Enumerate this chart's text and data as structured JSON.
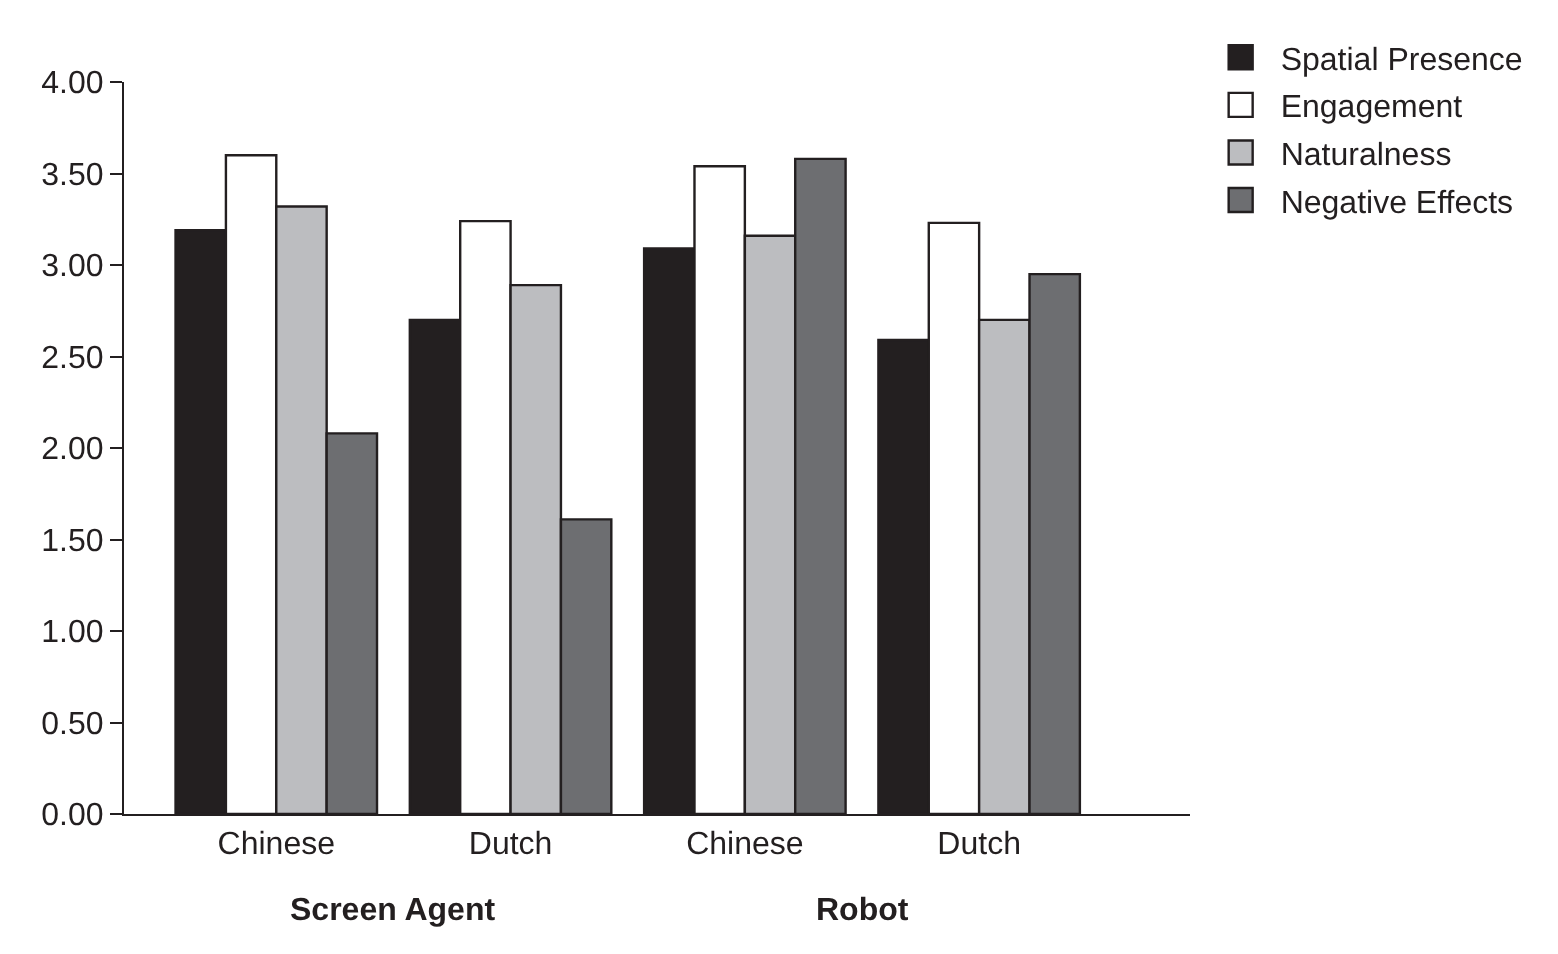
{
  "chart_data": {
    "type": "bar",
    "categories": [
      "Chinese",
      "Dutch",
      "Chinese",
      "Dutch"
    ],
    "series": [
      {
        "name": "Spatial Presence",
        "color": "#231f20",
        "values": [
          3.19,
          2.7,
          3.09,
          2.59
        ]
      },
      {
        "name": "Engagement",
        "color": "#ffffff",
        "values": [
          3.6,
          3.24,
          3.54,
          3.23
        ]
      },
      {
        "name": "Naturalness",
        "color": "#bcbdc0",
        "values": [
          3.32,
          2.89,
          3.16,
          2.7
        ]
      },
      {
        "name": "Negative Effects",
        "color": "#6d6e71",
        "values": [
          2.08,
          1.61,
          3.58,
          2.95
        ]
      }
    ],
    "annotations": [
      "Screen Agent",
      "Robot"
    ],
    "ylim": [
      0,
      4
    ],
    "yticks": [
      {
        "value": 0,
        "label": "0.00"
      },
      {
        "value": 0.5,
        "label": "0.50"
      },
      {
        "value": 1,
        "label": "1.00"
      },
      {
        "value": 1.5,
        "label": "1.50"
      },
      {
        "value": 2,
        "label": "2.00"
      },
      {
        "value": 2.5,
        "label": "2.50"
      },
      {
        "value": 3,
        "label": "3.00"
      },
      {
        "value": 3.5,
        "label": "3.50"
      },
      {
        "value": 4,
        "label": "4.00"
      }
    ],
    "legend": "top right"
  }
}
